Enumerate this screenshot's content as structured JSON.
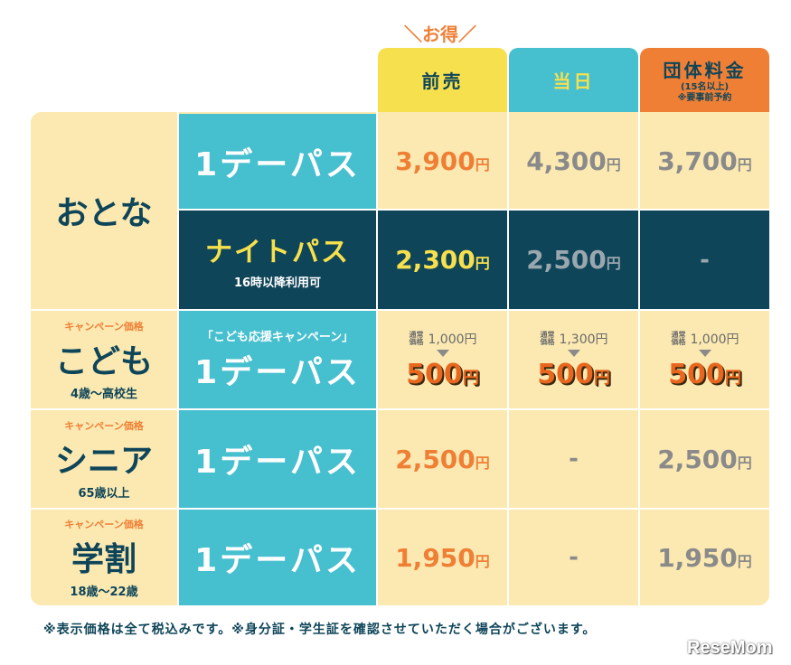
{
  "otoku_label": "＼お得／",
  "headers": {
    "presale": "前売",
    "dayof": "当日",
    "group": "団体料金",
    "group_sub1": "(15名以上)",
    "group_sub2": "※要事前予約"
  },
  "adult": {
    "label": "おとな",
    "day_pass": "1デーパス",
    "day_presale": "3,900",
    "day_dayof": "4,300",
    "day_group": "3,700",
    "night_pass": "ナイトパス",
    "night_note": "16時以降利用可",
    "night_presale": "2,300",
    "night_dayof": "2,500",
    "night_group": "-"
  },
  "child": {
    "campaign": "キャンペーン価格",
    "label": "こども",
    "age": "4歳～高校生",
    "pass_campaign": "「こども応援キャンペーン」",
    "pass": "1デーパス",
    "orig_tag": "通常価格",
    "orig_presale": "1,000円",
    "orig_dayof": "1,300円",
    "orig_group": "1,000円",
    "sale_presale": "500",
    "sale_dayof": "500",
    "sale_group": "500"
  },
  "senior": {
    "campaign": "キャンペーン価格",
    "label": "シニア",
    "age": "65歳以上",
    "pass": "1デーパス",
    "presale": "2,500",
    "dayof": "-",
    "group": "2,500"
  },
  "student": {
    "campaign": "キャンペーン価格",
    "label": "学割",
    "age": "18歳～22歳",
    "pass": "1デーパス",
    "presale": "1,950",
    "dayof": "-",
    "group": "1,950"
  },
  "yen": "円",
  "footnote": "※表示価格は全て税込みです。※身分証・学生証を確認させていただく場合がございます。",
  "logo": "ReseMom"
}
